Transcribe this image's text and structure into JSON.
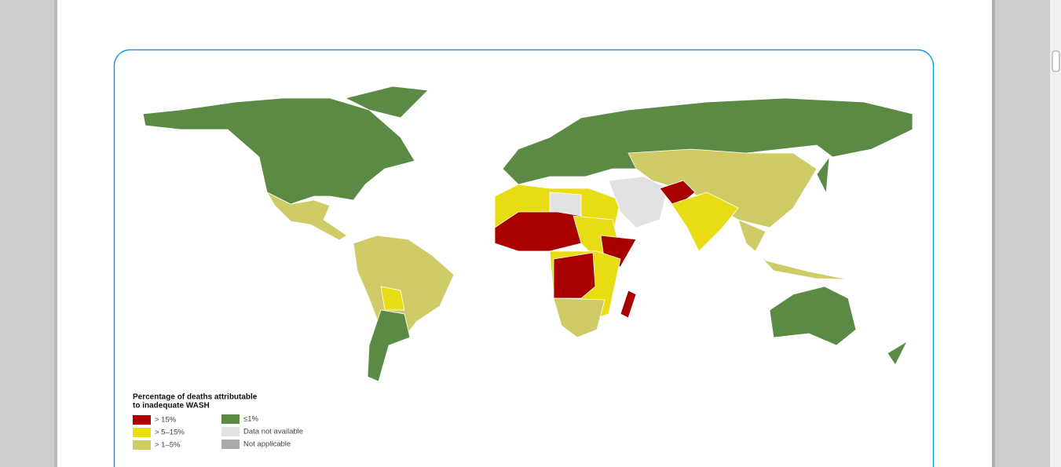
{
  "legend": {
    "title_lines": [
      "Percentage of deaths attributable",
      "to inadequate WASH"
    ],
    "items": [
      {
        "label": "> 15%",
        "color": "#a80000"
      },
      {
        "label": "> 5–15%",
        "color": "#e8dc14"
      },
      {
        "label": "> 1–5%",
        "color": "#cfcc68"
      },
      {
        "label": "≤1%",
        "color": "#5b8a45"
      },
      {
        "label": "Data not available",
        "color": "#e2e2e2"
      },
      {
        "label": "Not applicable",
        "color": "#aaaaaa"
      }
    ]
  }
}
